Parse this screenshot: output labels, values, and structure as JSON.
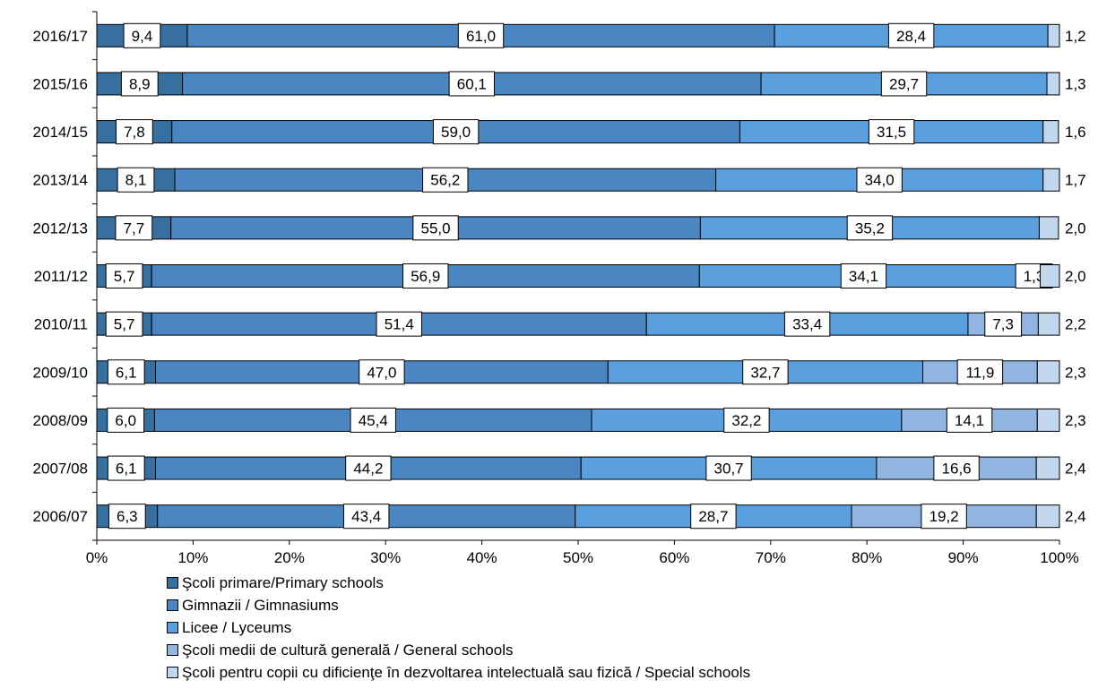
{
  "chart_data": {
    "type": "bar",
    "orientation": "horizontal",
    "stacked": "percent",
    "title": "",
    "xlabel": "",
    "ylabel": "",
    "xlim": [
      0,
      100
    ],
    "x_ticks": [
      "0%",
      "10%",
      "20%",
      "30%",
      "40%",
      "50%",
      "60%",
      "70%",
      "80%",
      "90%",
      "100%"
    ],
    "grid": false,
    "legend_position": "bottom",
    "categories": [
      "2016/17",
      "2015/16",
      "2014/15",
      "2013/14",
      "2012/13",
      "2011/12",
      "2010/11",
      "2009/10",
      "2008/09",
      "2007/08",
      "2006/07"
    ],
    "series": [
      {
        "name": "Şcoli primare/Primary schools",
        "color": "#376f9f",
        "values": [
          9.4,
          8.9,
          7.8,
          8.1,
          7.7,
          5.7,
          5.7,
          6.1,
          6.0,
          6.1,
          6.3
        ],
        "labels": [
          "9,4",
          "8,9",
          "7,8",
          "8,1",
          "7,7",
          "5,7",
          "5,7",
          "6,1",
          "6,0",
          "6,1",
          "6,3"
        ]
      },
      {
        "name": "Gimnazii / Gimnasiums",
        "color": "#4a86c2",
        "values": [
          61.0,
          60.1,
          59.0,
          56.2,
          55.0,
          56.9,
          51.4,
          47.0,
          45.4,
          44.2,
          43.4
        ],
        "labels": [
          "61,0",
          "60,1",
          "59,0",
          "56,2",
          "55,0",
          "56,9",
          "51,4",
          "47,0",
          "45,4",
          "44,2",
          "43,4"
        ]
      },
      {
        "name": "Licee / Lyceums",
        "color": "#5aa0de",
        "values": [
          28.4,
          29.7,
          31.5,
          34.0,
          35.2,
          34.1,
          33.4,
          32.7,
          32.2,
          30.7,
          28.7
        ],
        "labels": [
          "28,4",
          "29,7",
          "31,5",
          "34,0",
          "35,2",
          "34,1",
          "33,4",
          "32,7",
          "32,2",
          "30,7",
          "28,7"
        ]
      },
      {
        "name": "Şcoli medii de cultură generală / General schools",
        "color": "#8fb5e0",
        "values": [
          0,
          0,
          0,
          0,
          0,
          1.3,
          7.3,
          11.9,
          14.1,
          16.6,
          19.2
        ],
        "labels": [
          "",
          "",
          "",
          "",
          "",
          "1,3",
          "7,3",
          "11,9",
          "14,1",
          "16,6",
          "19,2"
        ]
      },
      {
        "name": "Şcoli pentru copii cu dificienţe în dezvoltarea intelectuală sau fizică / Special schools",
        "color": "#c2d6ee",
        "values": [
          1.2,
          1.3,
          1.6,
          1.7,
          2.0,
          2.0,
          2.2,
          2.3,
          2.3,
          2.4,
          2.4
        ],
        "labels": [
          "1,2",
          "1,3",
          "1,6",
          "1,7",
          "2,0",
          "2,0",
          "2,2",
          "2,3",
          "2,3",
          "2,4",
          "2,4"
        ],
        "label_outside": true
      }
    ]
  }
}
